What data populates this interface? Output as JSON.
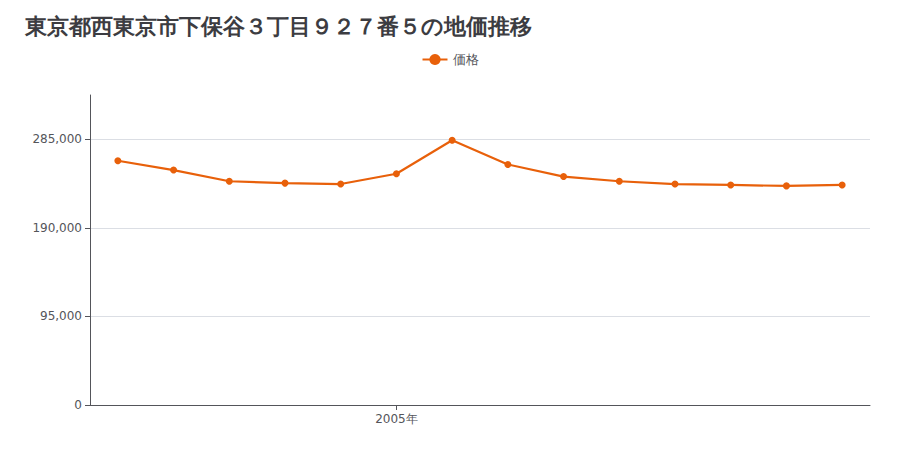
{
  "chart_data": {
    "type": "line",
    "title": "東京都西東京市下保谷３丁目９２７番５の地価推移",
    "x": [
      2000,
      2001,
      2002,
      2003,
      2004,
      2005,
      2006,
      2007,
      2008,
      2009,
      2010,
      2011,
      2012,
      2013
    ],
    "series": [
      {
        "name": "価格",
        "color": "#E8600A",
        "marker": "circle",
        "values": [
          262000,
          252000,
          240000,
          238000,
          237000,
          248000,
          284000,
          258000,
          245000,
          240000,
          237000,
          236000,
          235000,
          236000
        ]
      }
    ],
    "xlim": [
      1999.5,
      2013.5
    ],
    "xticks": [
      {
        "value": 2005,
        "label": "2005年"
      }
    ],
    "ylim": [
      0,
      332500
    ],
    "yticks": [
      0,
      {
        "value": 95000,
        "label": "95,000"
      },
      {
        "value": 190000,
        "label": "190,000"
      },
      {
        "value": 285000,
        "label": "285,000"
      }
    ],
    "grid": true,
    "legend": "top"
  }
}
